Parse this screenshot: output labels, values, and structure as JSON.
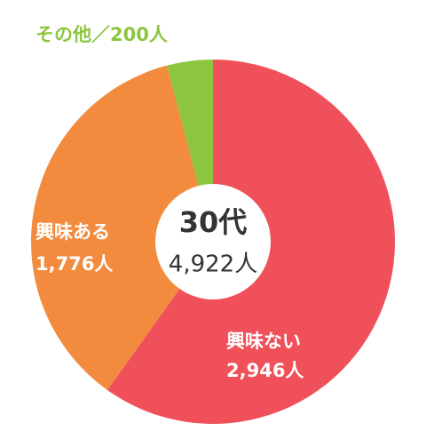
{
  "chart_data": {
    "type": "donut",
    "center_title": "30代",
    "center_total": "4,922人",
    "categories": [
      "興味ない",
      "興味ある",
      "その他"
    ],
    "values": [
      2946,
      1776,
      200
    ],
    "value_labels": [
      "2,946人",
      "1,776人",
      "200人"
    ],
    "label_separator": "／",
    "colors": [
      "#f0505a",
      "#f28b3e",
      "#8cc63f"
    ]
  }
}
